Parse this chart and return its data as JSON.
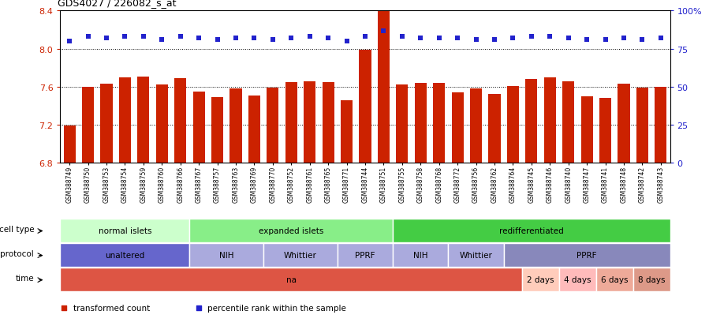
{
  "title": "GDS4027 / 226082_s_at",
  "samples": [
    "GSM388749",
    "GSM388750",
    "GSM388753",
    "GSM388754",
    "GSM388759",
    "GSM388760",
    "GSM388766",
    "GSM388767",
    "GSM388757",
    "GSM388763",
    "GSM388769",
    "GSM388770",
    "GSM388752",
    "GSM388761",
    "GSM388765",
    "GSM388771",
    "GSM388744",
    "GSM388751",
    "GSM388755",
    "GSM388758",
    "GSM388768",
    "GSM388772",
    "GSM388756",
    "GSM388762",
    "GSM388764",
    "GSM388745",
    "GSM388746",
    "GSM388740",
    "GSM388747",
    "GSM388741",
    "GSM388748",
    "GSM388742",
    "GSM388743"
  ],
  "bar_values": [
    7.19,
    7.6,
    7.63,
    7.7,
    7.71,
    7.62,
    7.69,
    7.55,
    7.49,
    7.58,
    7.51,
    7.59,
    7.65,
    7.66,
    7.65,
    7.46,
    7.99,
    8.4,
    7.62,
    7.64,
    7.64,
    7.54,
    7.58,
    7.52,
    7.61,
    7.68,
    7.7,
    7.66,
    7.5,
    7.48,
    7.63,
    7.59,
    7.6
  ],
  "percentile_values": [
    80,
    83,
    82,
    83,
    83,
    81,
    83,
    82,
    81,
    82,
    82,
    81,
    82,
    83,
    82,
    80,
    83,
    87,
    83,
    82,
    82,
    82,
    81,
    81,
    82,
    83,
    83,
    82,
    81,
    81,
    82,
    81,
    82
  ],
  "bar_color": "#cc2200",
  "percentile_color": "#2222cc",
  "ylim_left": [
    6.8,
    8.4
  ],
  "ylim_right": [
    0,
    100
  ],
  "yticks_left": [
    6.8,
    7.2,
    7.6,
    8.0,
    8.4
  ],
  "yticks_right": [
    0,
    25,
    50,
    75,
    100
  ],
  "ytick_labels_right": [
    "0",
    "25",
    "50",
    "75",
    "100%"
  ],
  "cell_type_groups": [
    {
      "label": "normal islets",
      "start": 0,
      "end": 7,
      "color": "#ccffcc"
    },
    {
      "label": "expanded islets",
      "start": 7,
      "end": 18,
      "color": "#88ee88"
    },
    {
      "label": "redifferentiated",
      "start": 18,
      "end": 33,
      "color": "#44cc44"
    }
  ],
  "protocol_groups": [
    {
      "label": "unaltered",
      "start": 0,
      "end": 7,
      "color": "#6666cc"
    },
    {
      "label": "NIH",
      "start": 7,
      "end": 11,
      "color": "#aaaadd"
    },
    {
      "label": "Whittier",
      "start": 11,
      "end": 15,
      "color": "#aaaadd"
    },
    {
      "label": "PPRF",
      "start": 15,
      "end": 18,
      "color": "#aaaadd"
    },
    {
      "label": "NIH",
      "start": 18,
      "end": 21,
      "color": "#aaaadd"
    },
    {
      "label": "Whittier",
      "start": 21,
      "end": 24,
      "color": "#aaaadd"
    },
    {
      "label": "PPRF",
      "start": 24,
      "end": 33,
      "color": "#8888bb"
    }
  ],
  "time_groups": [
    {
      "label": "na",
      "start": 0,
      "end": 25,
      "color": "#dd5544"
    },
    {
      "label": "2 days",
      "start": 25,
      "end": 27,
      "color": "#ffccbb"
    },
    {
      "label": "4 days",
      "start": 27,
      "end": 29,
      "color": "#ffbbbb"
    },
    {
      "label": "6 days",
      "start": 29,
      "end": 31,
      "color": "#eeaa99"
    },
    {
      "label": "8 days",
      "start": 31,
      "end": 33,
      "color": "#dd9988"
    }
  ],
  "row_labels": [
    "cell type",
    "protocol",
    "time"
  ],
  "legend_items": [
    "transformed count",
    "percentile rank within the sample"
  ],
  "legend_colors": [
    "#cc2200",
    "#2222cc"
  ]
}
